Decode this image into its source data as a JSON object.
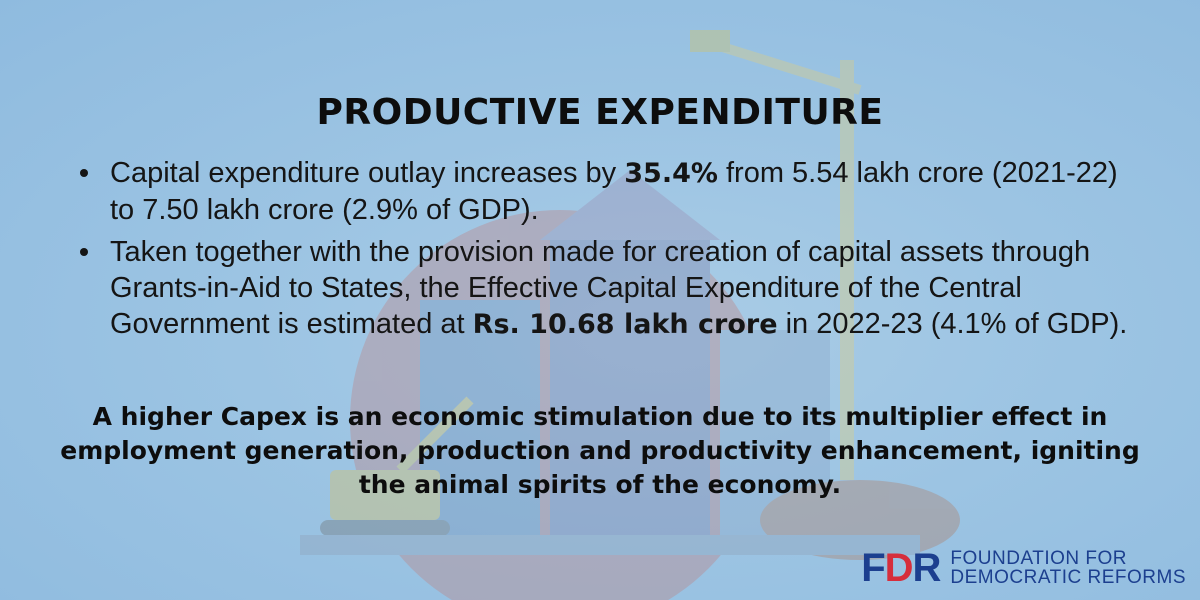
{
  "title": "PRODUCTIVE EXPENDITURE",
  "bullets": [
    {
      "before": "Capital expenditure outlay increases by ",
      "bold": "35.4%",
      "after": " from 5.54 lakh crore (2021-22) to 7.50 lakh crore (2.9% of GDP)."
    },
    {
      "before": "Taken together with the provision made for creation of capital assets through Grants-in-Aid to States, the Effective Capital Expenditure of the Central Government is estimated at ",
      "bold": "Rs. 10.68 lakh crore",
      "after": " in 2022-23 (4.1% of GDP)."
    }
  ],
  "closing": "A higher Capex is an economic stimulation due to its multiplier effect in employment generation, production and productivity enhancement, igniting the animal spirits of the economy.",
  "logo": {
    "mark_f": "F",
    "mark_d": "D",
    "mark_r": "R",
    "line1": "FOUNDATION FOR",
    "line2": "DEMOCRATIC REFORMS"
  },
  "colors": {
    "background": "#9cc4e3",
    "text": "#151515",
    "logo_blue": "#1c3f8f",
    "logo_red": "#d62e3c"
  },
  "background_art": "faded construction illustration (building, crane, excavator)"
}
